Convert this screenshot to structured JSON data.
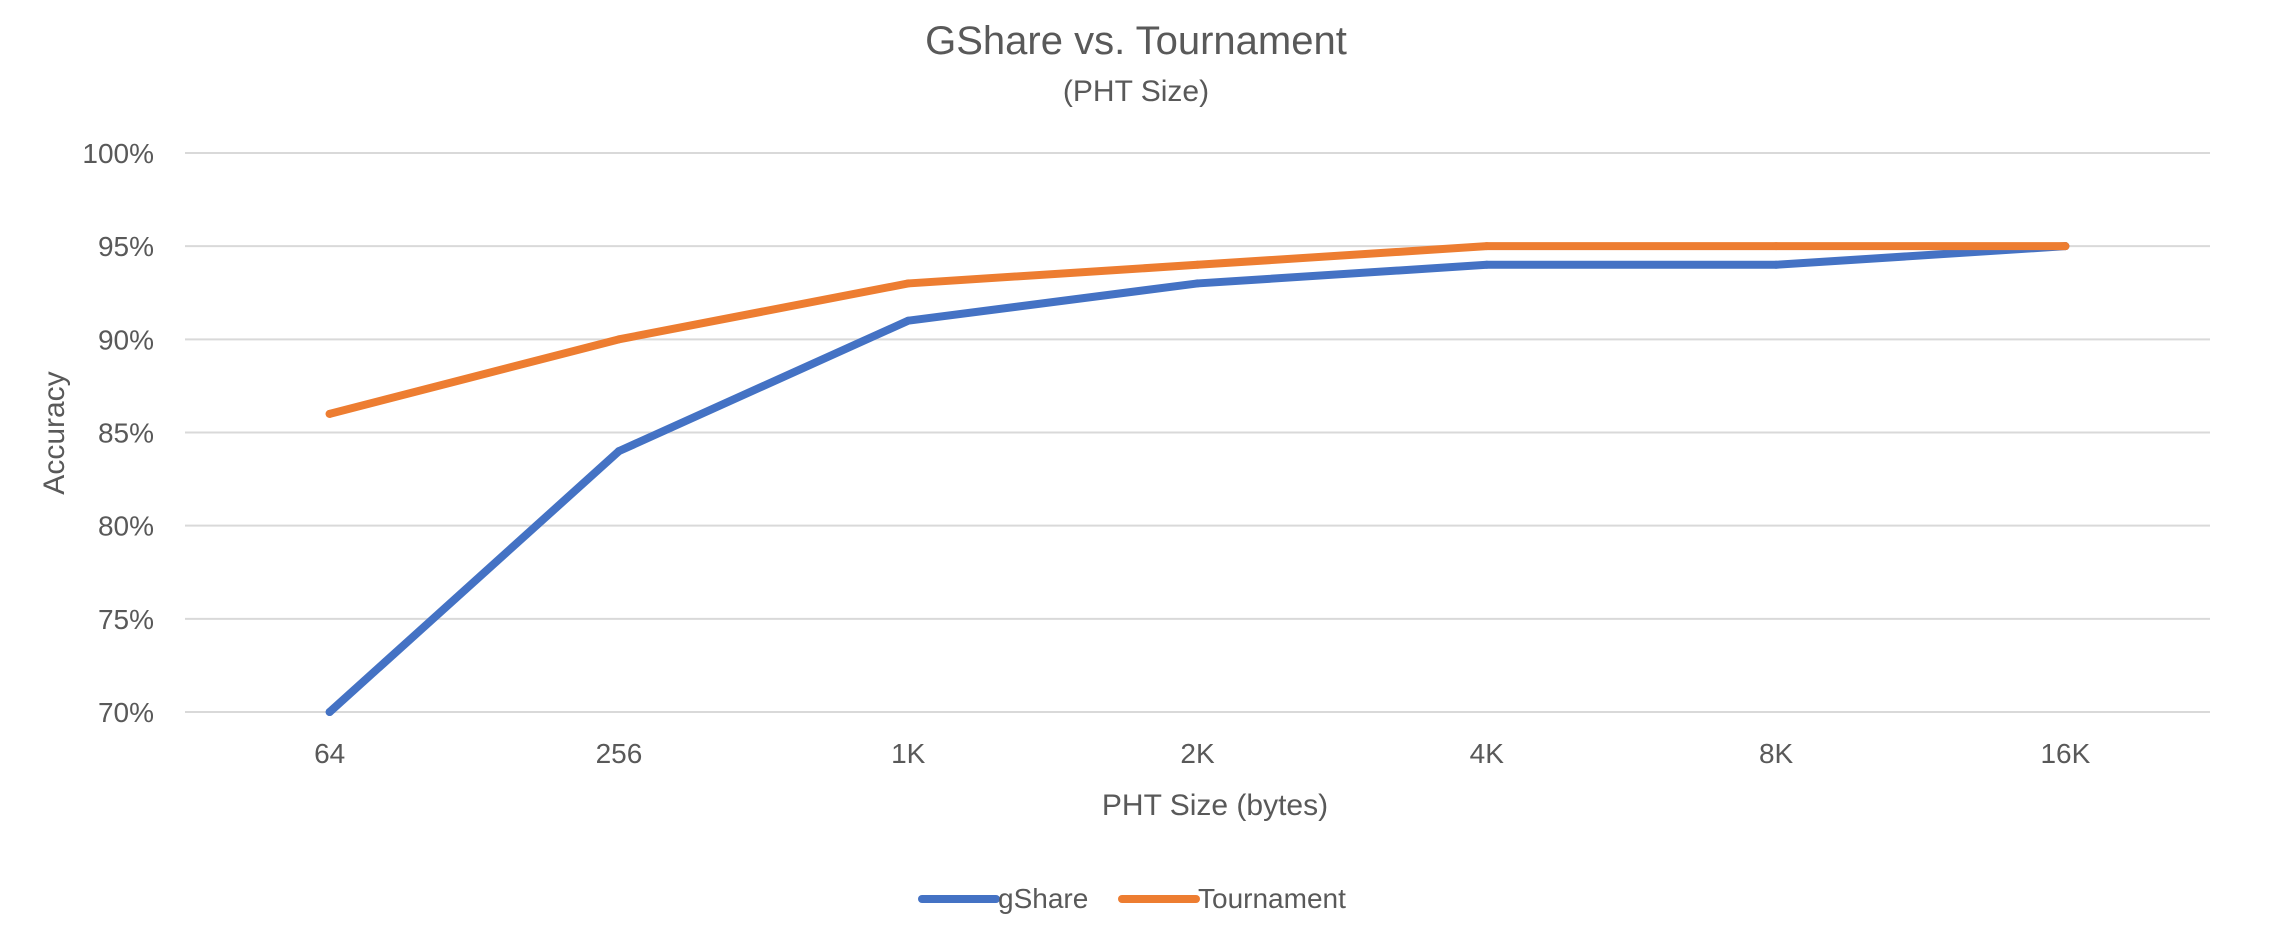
{
  "chart_data": {
    "type": "line",
    "title": "GShare vs. Tournament",
    "subtitle": "(PHT Size)",
    "xlabel": "PHT Size (bytes)",
    "ylabel": "Accuracy",
    "categories": [
      "64",
      "256",
      "1K",
      "2K",
      "4K",
      "8K",
      "16K"
    ],
    "ylim": [
      0.7,
      1.0
    ],
    "yticks": [
      0.7,
      0.75,
      0.8,
      0.85,
      0.9,
      0.95,
      1.0
    ],
    "ytick_labels": [
      "70%",
      "75%",
      "80%",
      "85%",
      "90%",
      "95%",
      "100%"
    ],
    "grid": true,
    "legend_position": "bottom",
    "series": [
      {
        "name": "gShare",
        "color": "#4472C4",
        "values": [
          0.7,
          0.84,
          0.91,
          0.93,
          0.94,
          0.94,
          0.95
        ]
      },
      {
        "name": "Tournament",
        "color": "#ED7D31",
        "values": [
          0.86,
          0.9,
          0.93,
          0.94,
          0.95,
          0.95,
          0.95
        ]
      }
    ]
  }
}
